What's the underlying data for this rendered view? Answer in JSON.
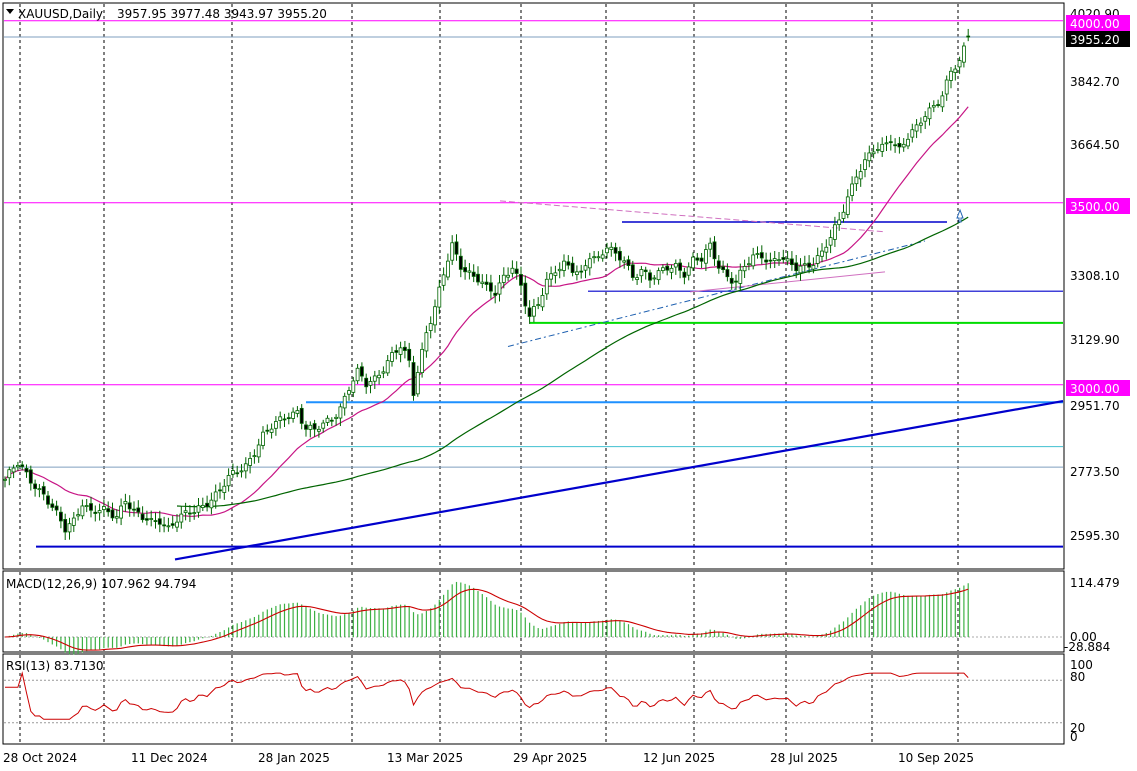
{
  "header": {
    "symbol_label": "XAUUSD,Daily",
    "ohlc": "3957.95 3977.48 3943.97 3955.20"
  },
  "main_axis": {
    "labels": [
      "4020.90",
      "3842.70",
      "3664.50",
      "3308.10",
      "3129.90",
      "2951.70",
      "2773.50",
      "2595.30"
    ],
    "badges": [
      {
        "text": "4000.00",
        "bg": "#ff00ff",
        "fg": "#ffffff"
      },
      {
        "text": "3955.20",
        "bg": "#000000",
        "fg": "#ffffff"
      },
      {
        "text": "3500.00",
        "bg": "#ff00ff",
        "fg": "#ffffff"
      },
      {
        "text": "3000.00",
        "bg": "#ff00ff",
        "fg": "#ffffff"
      }
    ]
  },
  "macd_panel": {
    "label": "MACD(12,26,9) 107.962 94.794",
    "axis_labels": [
      "114.479",
      "0.00",
      "-28.884"
    ]
  },
  "rsi_panel": {
    "label": "RSI(13) 83.7130",
    "axis_labels": [
      "100",
      "80",
      "20",
      "0"
    ]
  },
  "time_axis": {
    "labels": [
      "28 Oct 2024",
      "11 Dec 2024",
      "28 Jan 2025",
      "13 Mar 2025",
      "29 Apr 2025",
      "12 Jun 2025",
      "28 Jul 2025",
      "10 Sep 2025"
    ]
  },
  "colors": {
    "bull": "#ffffff",
    "bear": "#000000",
    "candle_line": "#006400",
    "ma_fast": "#c71585",
    "ma_slow": "#006400",
    "trend": "#0000cc",
    "level": "#ff00ff",
    "macd_hist": "#3cb043",
    "macd_signal": "#cc0000",
    "rsi": "#cc0000"
  },
  "chart_data": [
    {
      "type": "candlestick",
      "title": "XAUUSD,Daily",
      "ylim": [
        2520,
        4060
      ],
      "x_ticks": [
        "28 Oct 2024",
        "11 Dec 2024",
        "28 Jan 2025",
        "13 Mar 2025",
        "29 Apr 2025",
        "12 Jun 2025",
        "28 Jul 2025",
        "10 Sep 2025"
      ],
      "last_ohlc": {
        "open": 3957.95,
        "high": 3977.48,
        "low": 3943.97,
        "close": 3955.2
      },
      "price_path": [
        [
          0,
          2740
        ],
        [
          3,
          2780
        ],
        [
          6,
          2740
        ],
        [
          9,
          2700
        ],
        [
          12,
          2640
        ],
        [
          14,
          2600
        ],
        [
          16,
          2630
        ],
        [
          18,
          2680
        ],
        [
          20,
          2650
        ],
        [
          23,
          2650
        ],
        [
          26,
          2640
        ],
        [
          28,
          2690
        ],
        [
          30,
          2650
        ],
        [
          32,
          2630
        ],
        [
          34,
          2620
        ],
        [
          36,
          2630
        ],
        [
          38,
          2610
        ],
        [
          40,
          2630
        ],
        [
          44,
          2650
        ],
        [
          46,
          2670
        ],
        [
          48,
          2690
        ],
        [
          50,
          2710
        ],
        [
          52,
          2740
        ],
        [
          54,
          2760
        ],
        [
          56,
          2780
        ],
        [
          58,
          2820
        ],
        [
          60,
          2860
        ],
        [
          62,
          2880
        ],
        [
          64,
          2900
        ],
        [
          66,
          2920
        ],
        [
          68,
          2930
        ],
        [
          70,
          2880
        ],
        [
          72,
          2870
        ],
        [
          74,
          2890
        ],
        [
          76,
          2910
        ],
        [
          78,
          2940
        ],
        [
          80,
          2990
        ],
        [
          82,
          3030
        ],
        [
          84,
          3000
        ],
        [
          86,
          3020
        ],
        [
          88,
          3050
        ],
        [
          90,
          3080
        ],
        [
          92,
          3100
        ],
        [
          94,
          3060
        ],
        [
          95,
          2980
        ],
        [
          96,
          3040
        ],
        [
          98,
          3150
        ],
        [
          100,
          3210
        ],
        [
          102,
          3300
        ],
        [
          104,
          3380
        ],
        [
          106,
          3330
        ],
        [
          108,
          3310
        ],
        [
          110,
          3290
        ],
        [
          112,
          3260
        ],
        [
          114,
          3250
        ],
        [
          116,
          3300
        ],
        [
          118,
          3330
        ],
        [
          120,
          3270
        ],
        [
          121,
          3220
        ],
        [
          122,
          3180
        ],
        [
          124,
          3220
        ],
        [
          126,
          3290
        ],
        [
          128,
          3320
        ],
        [
          130,
          3330
        ],
        [
          132,
          3310
        ],
        [
          134,
          3300
        ],
        [
          136,
          3360
        ],
        [
          138,
          3350
        ],
        [
          140,
          3380
        ],
        [
          142,
          3350
        ],
        [
          144,
          3340
        ],
        [
          146,
          3300
        ],
        [
          148,
          3320
        ],
        [
          150,
          3290
        ],
        [
          152,
          3300
        ],
        [
          154,
          3320
        ],
        [
          156,
          3330
        ],
        [
          158,
          3310
        ],
        [
          160,
          3340
        ],
        [
          162,
          3340
        ],
        [
          164,
          3380
        ],
        [
          166,
          3330
        ],
        [
          168,
          3300
        ],
        [
          170,
          3280
        ],
        [
          172,
          3320
        ],
        [
          174,
          3350
        ],
        [
          176,
          3360
        ],
        [
          178,
          3340
        ],
        [
          180,
          3350
        ],
        [
          182,
          3330
        ],
        [
          184,
          3320
        ],
        [
          186,
          3330
        ],
        [
          188,
          3340
        ],
        [
          190,
          3360
        ],
        [
          192,
          3400
        ],
        [
          194,
          3450
        ],
        [
          196,
          3520
        ],
        [
          198,
          3580
        ],
        [
          200,
          3610
        ],
        [
          202,
          3640
        ],
        [
          204,
          3650
        ],
        [
          206,
          3680
        ],
        [
          208,
          3650
        ],
        [
          210,
          3680
        ],
        [
          212,
          3700
        ],
        [
          214,
          3740
        ],
        [
          216,
          3770
        ],
        [
          218,
          3800
        ],
        [
          220,
          3860
        ],
        [
          222,
          3880
        ],
        [
          224,
          3955
        ]
      ],
      "levels": [
        4000,
        3955.2,
        3500,
        3000
      ],
      "support_lines": [
        3447,
        3257,
        3170,
        2951.7,
        2830,
        2773.5,
        2555
      ]
    },
    {
      "type": "bar",
      "title": "MACD(12,26,9)",
      "ylim": [
        -28.884,
        114.479
      ],
      "last_values": {
        "macd": 107.962,
        "signal": 94.794
      }
    },
    {
      "type": "line",
      "title": "RSI(13)",
      "ylim": [
        0,
        100
      ],
      "last_value": 83.713,
      "levels": [
        80,
        20
      ]
    }
  ]
}
